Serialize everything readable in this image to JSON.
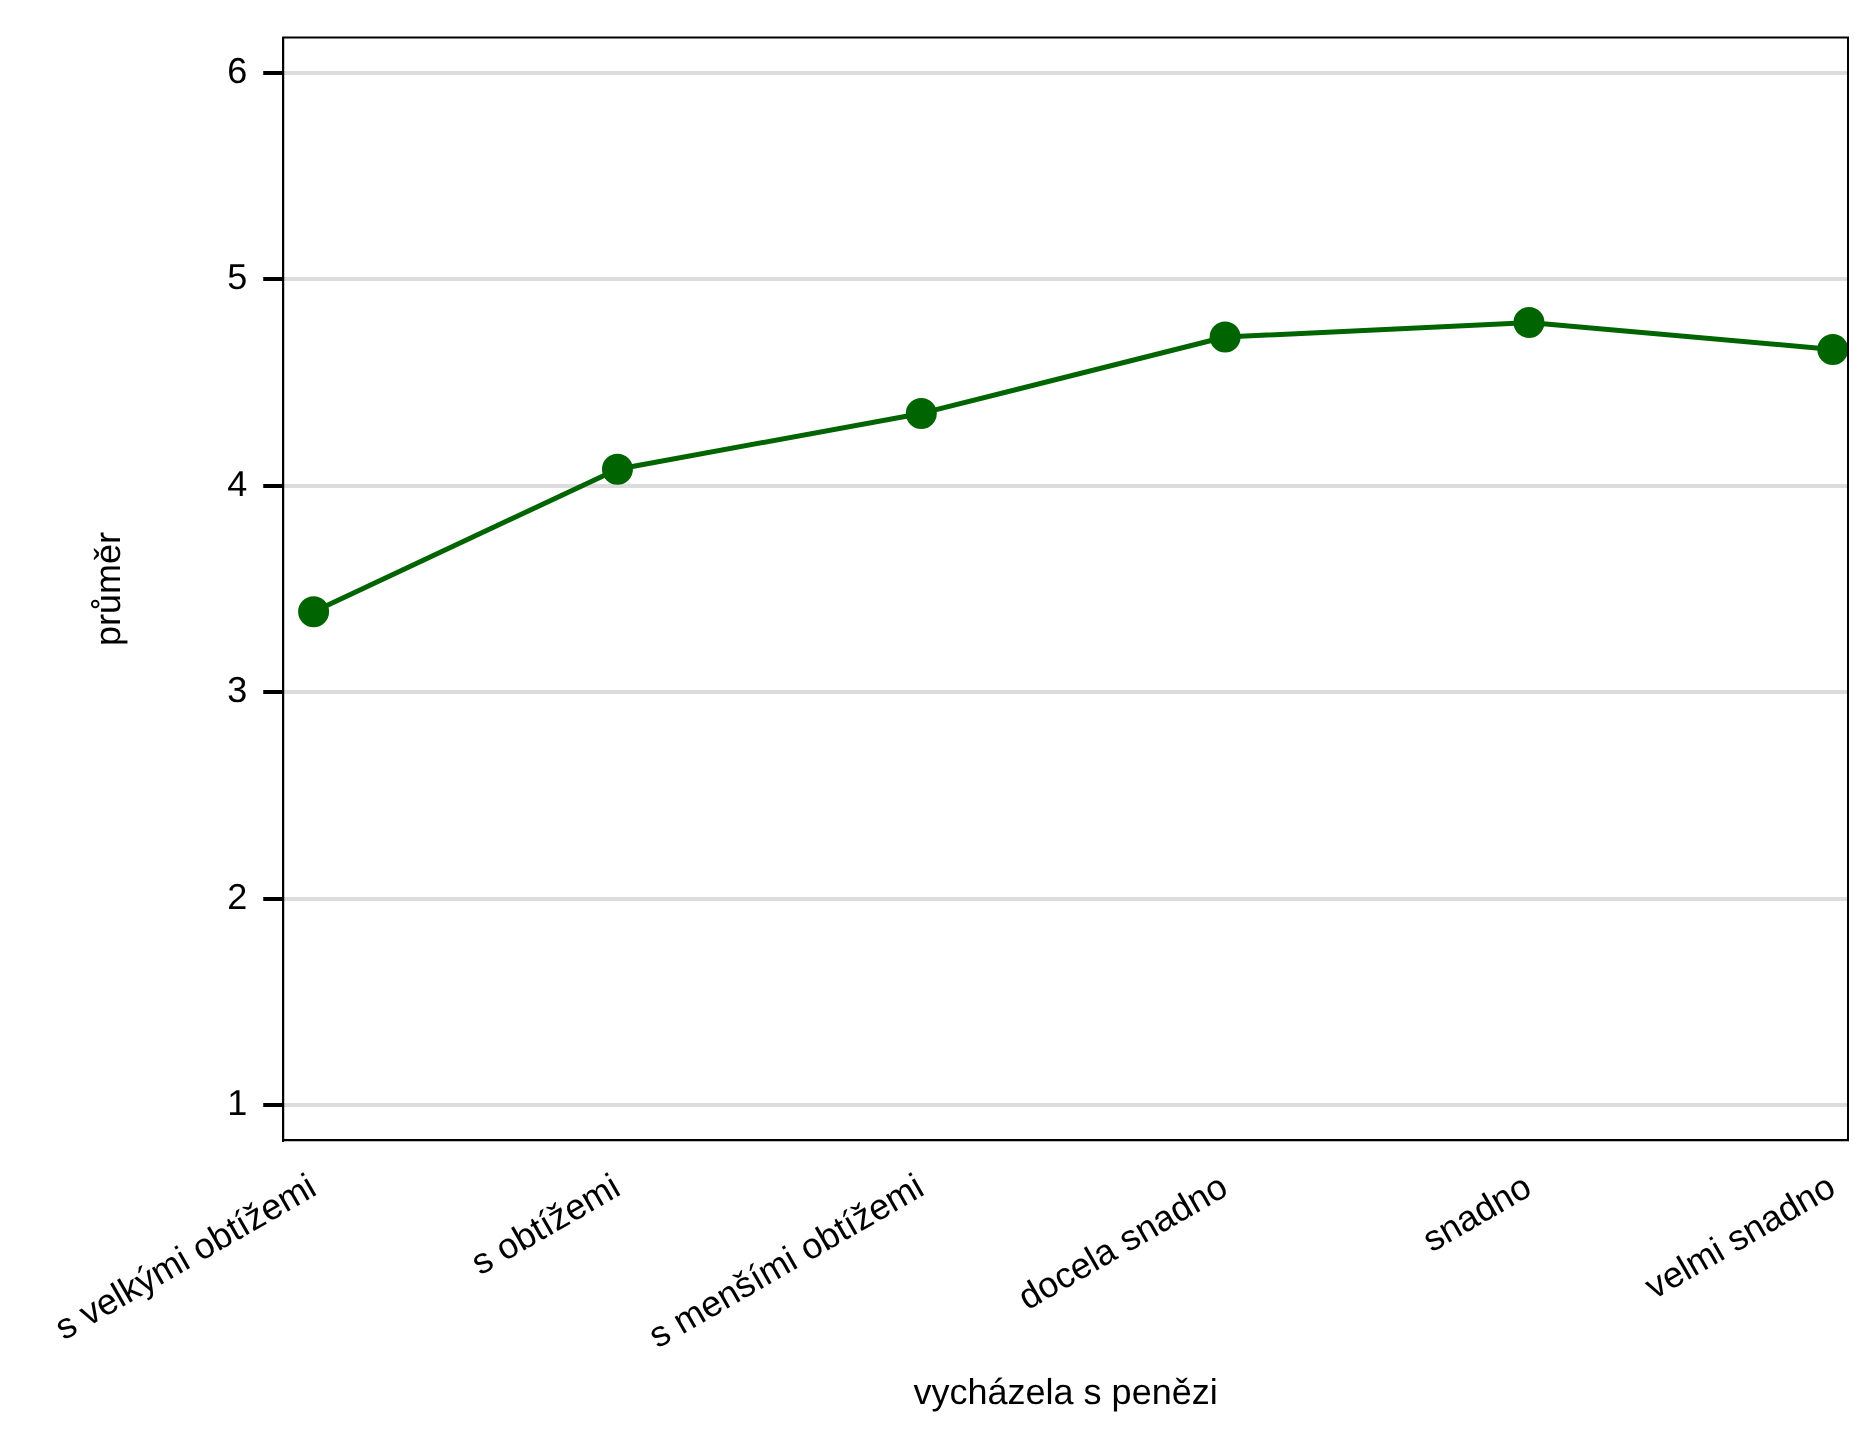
{
  "chart_data": {
    "type": "line",
    "xlabel": "vycházela s penězi",
    "ylabel": "průměr",
    "categories": [
      "s velkými obtížemi",
      "s obtížemi",
      "s menšími obtížemi",
      "docela snadno",
      "snadno",
      "velmi snadno"
    ],
    "series": [
      {
        "color": "#006400",
        "values": [
          3.39,
          4.08,
          4.35,
          4.72,
          4.79,
          4.66
        ]
      }
    ],
    "ylim": [
      0.83,
      6.17
    ],
    "yticks": [
      1,
      2,
      3,
      4,
      5,
      6
    ],
    "grid": "y",
    "legend": false,
    "marker": "circle",
    "line_style": "solid"
  }
}
